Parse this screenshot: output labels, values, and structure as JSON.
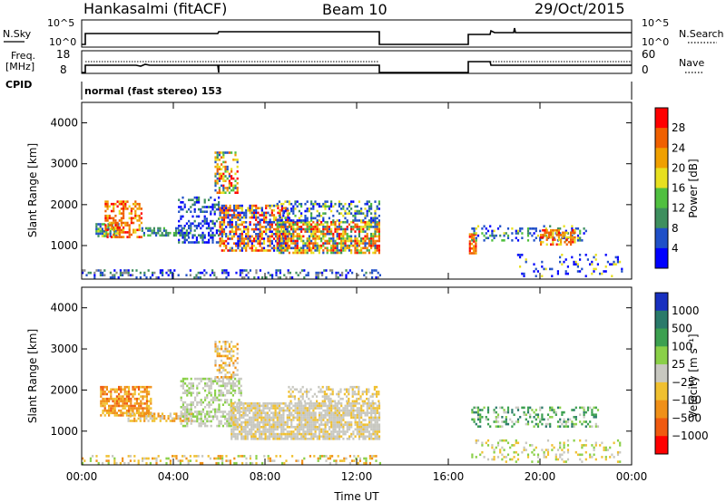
{
  "header": {
    "station": "Hankasalmi (fitACF)",
    "beam": "Beam 10",
    "date": "29/Oct/2015"
  },
  "cpid": {
    "label": "CPID",
    "mode": "normal (fast stereo) 153"
  },
  "panels": {
    "nsky": {
      "left_label": "N.Sky",
      "right_label": "N.Search",
      "left_ticks": [
        "10^5",
        "10^0"
      ],
      "right_ticks": [
        "10^5",
        "10^0"
      ]
    },
    "freq": {
      "left_label_1": "Freq.",
      "left_label_2": "[MHz]",
      "right_label": "Nave",
      "left_ticks": [
        "18",
        "8"
      ],
      "right_ticks": [
        "60",
        "0"
      ]
    }
  },
  "chart_data": [
    {
      "type": "heatmap",
      "name": "power",
      "ylabel": "Slant Range [km]",
      "x_ticks": [
        "00:00",
        "04:00",
        "08:00",
        "12:00",
        "16:00",
        "20:00",
        "00:00"
      ],
      "xlim_hours": [
        0,
        24
      ],
      "y_ticks": [
        1000,
        2000,
        3000,
        4000
      ],
      "ylim_km": [
        180,
        4500
      ],
      "colorbar": {
        "label": "Power [dB]",
        "ticks": [
          "4",
          "8",
          "12",
          "16",
          "20",
          "24",
          "28"
        ],
        "colors": [
          "#0000ff",
          "#2050c8",
          "#3e8f5e",
          "#50c040",
          "#e8e020",
          "#f0a000",
          "#f06000",
          "#ff0000"
        ]
      },
      "data_gap_hours": [
        13.0,
        17.0
      ]
    },
    {
      "type": "heatmap",
      "name": "velocity",
      "ylabel": "Slant Range [km]",
      "xlabel": "Time UT",
      "x_ticks": [
        "00:00",
        "04:00",
        "08:00",
        "12:00",
        "16:00",
        "20:00",
        "00:00"
      ],
      "xlim_hours": [
        0,
        24
      ],
      "y_ticks": [
        1000,
        2000,
        3000,
        4000
      ],
      "ylim_km": [
        180,
        4500
      ],
      "colorbar": {
        "label": "Velocity [m s⁻¹]",
        "ticks": [
          "1000",
          "500",
          "100",
          "25",
          "−25",
          "−100",
          "−500",
          "−1000"
        ],
        "colors": [
          "#1830c0",
          "#2a7a6a",
          "#3ca050",
          "#8ad048",
          "#c8c8c0",
          "#f0c030",
          "#f09018",
          "#f05a10",
          "#ff0000"
        ]
      },
      "data_gap_hours": [
        13.0,
        17.0
      ]
    }
  ]
}
